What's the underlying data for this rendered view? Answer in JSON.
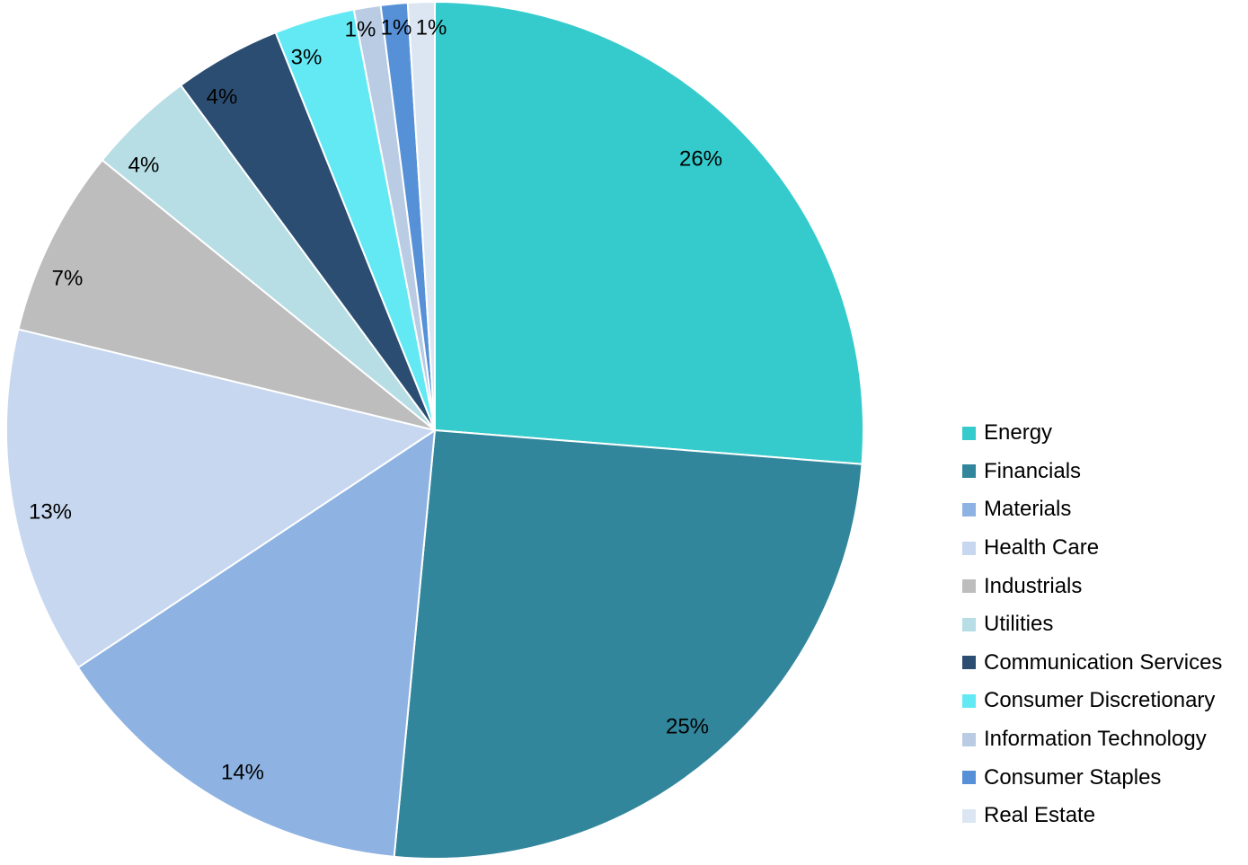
{
  "chart_data": {
    "type": "pie",
    "title": "",
    "start_angle": "12 o'clock",
    "direction": "clockwise",
    "legend_position": "right",
    "slices": [
      {
        "name": "Energy",
        "value": 26,
        "label": "26%",
        "color": "#35CBCC"
      },
      {
        "name": "Financials",
        "value": 25,
        "label": "25%",
        "color": "#32869C"
      },
      {
        "name": "Materials",
        "value": 14,
        "label": "14%",
        "color": "#8EB2E1"
      },
      {
        "name": "Health Care",
        "value": 13,
        "label": "13%",
        "color": "#C6D7EF"
      },
      {
        "name": "Industrials",
        "value": 7,
        "label": "7%",
        "color": "#BDBDBD"
      },
      {
        "name": "Utilities",
        "value": 4,
        "label": "4%",
        "color": "#B7DDE5"
      },
      {
        "name": "Communication Services",
        "value": 4,
        "label": "4%",
        "color": "#2C4D72"
      },
      {
        "name": "Consumer Discretionary",
        "value": 3,
        "label": "3%",
        "color": "#63E9F3"
      },
      {
        "name": "Information Technology",
        "value": 1,
        "label": "1%",
        "color": "#B9CCE4"
      },
      {
        "name": "Consumer Staples",
        "value": 1,
        "label": "1%",
        "color": "#5690D6"
      },
      {
        "name": "Real Estate",
        "value": 1,
        "label": "1%",
        "color": "#DCE6F2"
      }
    ]
  }
}
